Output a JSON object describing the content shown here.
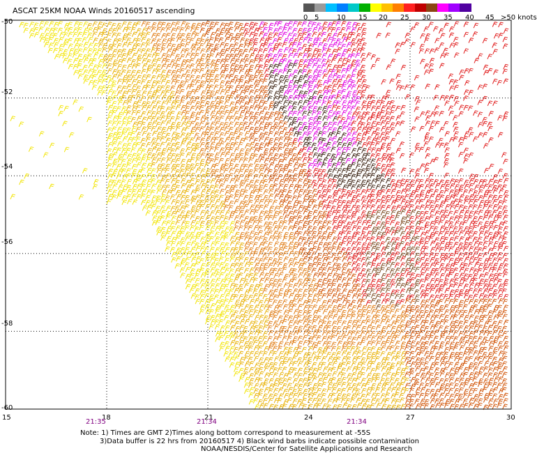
{
  "title": "ASCAT 25KM NOAA Winds 20160517 ascending",
  "legend": {
    "swatches": [
      "#555555",
      "#9a9a9a",
      "#00bfff",
      "#007fff",
      "#00c8c8",
      "#00b000",
      "#ffff00",
      "#ffc000",
      "#ff7f00",
      "#ff2020",
      "#c00000",
      "#8b4513",
      "#ff00ff",
      "#a000ff",
      "#5000a0"
    ],
    "labels": [
      "0",
      "5",
      "10",
      "15",
      "20",
      "25",
      "30",
      "35",
      "40",
      "45",
      ">50 knots"
    ]
  },
  "axes": {
    "lat_labels": [
      "-50",
      "-52",
      "-54",
      "-56",
      "-58",
      "-60"
    ],
    "lon_labels": [
      "15",
      "18",
      "21",
      "24",
      "27",
      "30"
    ],
    "time_labels": [
      "21:35",
      "21:34",
      "21:34"
    ]
  },
  "notes": {
    "line1": "Note: 1) Times are GMT 2)Times along bottom correspond to measurement at -55S",
    "line2": "3)Data buffer is 22 hrs from 20160517 4) Black wind barbs indicate possible contamination",
    "line3": "NOAA/NESDIS/Center for Satellite Applications and Research"
  },
  "colors": {
    "yellow": "#f2e400",
    "gold": "#e8b000",
    "orange": "#e07a10",
    "dark_orange": "#d05000",
    "red": "#e01818",
    "brown": "#7a4a20",
    "dark_brown": "#3a2010",
    "magenta": "#e000e0",
    "green": "#008800"
  }
}
